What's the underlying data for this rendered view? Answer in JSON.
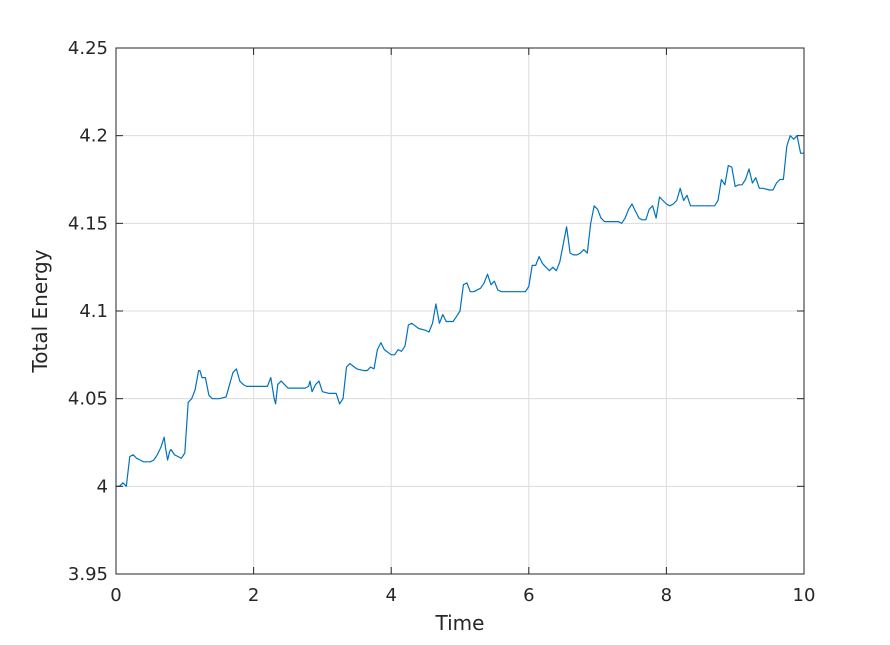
{
  "chart_data": {
    "type": "line",
    "title": "",
    "xlabel": "Time",
    "ylabel": "Total Energy",
    "xlim": [
      0,
      10
    ],
    "ylim": [
      3.95,
      4.25
    ],
    "xticks": [
      0,
      2,
      4,
      6,
      8,
      10
    ],
    "xtick_labels": [
      "0",
      "2",
      "4",
      "6",
      "8",
      "10"
    ],
    "yticks": [
      3.95,
      4.0,
      4.05,
      4.1,
      4.15,
      4.2,
      4.25
    ],
    "ytick_labels": [
      "3.95",
      "4",
      "4.05",
      "4.1",
      "4.15",
      "4.2",
      "4.25"
    ],
    "grid": true,
    "line_color": "#0072BD",
    "series": [
      {
        "x": [
          0.0,
          0.05,
          0.1,
          0.15,
          0.2,
          0.25,
          0.3,
          0.35,
          0.4,
          0.45,
          0.5,
          0.55,
          0.6,
          0.65,
          0.7,
          0.72,
          0.75,
          0.78,
          0.8,
          0.85,
          0.9,
          0.95,
          1.0,
          1.05,
          1.1,
          1.15,
          1.2,
          1.22,
          1.25,
          1.3,
          1.35,
          1.4,
          1.5,
          1.6,
          1.7,
          1.75,
          1.8,
          1.85,
          1.9,
          2.0,
          2.1,
          2.2,
          2.25,
          2.3,
          2.32,
          2.35,
          2.4,
          2.5,
          2.6,
          2.7,
          2.75,
          2.8,
          2.82,
          2.85,
          2.9,
          2.95,
          3.0,
          3.1,
          3.2,
          3.25,
          3.3,
          3.35,
          3.4,
          3.5,
          3.6,
          3.65,
          3.7,
          3.75,
          3.8,
          3.85,
          3.9,
          4.0,
          4.05,
          4.1,
          4.15,
          4.2,
          4.25,
          4.3,
          4.4,
          4.5,
          4.55,
          4.6,
          4.65,
          4.7,
          4.75,
          4.8,
          4.9,
          4.95,
          5.0,
          5.05,
          5.1,
          5.15,
          5.2,
          5.3,
          5.35,
          5.4,
          5.45,
          5.5,
          5.55,
          5.6,
          5.7,
          5.8,
          5.9,
          5.95,
          6.0,
          6.05,
          6.1,
          6.15,
          6.2,
          6.3,
          6.35,
          6.4,
          6.45,
          6.5,
          6.55,
          6.6,
          6.65,
          6.7,
          6.75,
          6.8,
          6.85,
          6.9,
          6.95,
          7.0,
          7.05,
          7.1,
          7.2,
          7.3,
          7.35,
          7.4,
          7.45,
          7.5,
          7.55,
          7.6,
          7.65,
          7.7,
          7.75,
          7.8,
          7.85,
          7.9,
          8.0,
          8.05,
          8.1,
          8.15,
          8.2,
          8.25,
          8.3,
          8.35,
          8.4,
          8.5,
          8.6,
          8.7,
          8.75,
          8.8,
          8.85,
          8.9,
          8.95,
          9.0,
          9.05,
          9.1,
          9.15,
          9.2,
          9.25,
          9.3,
          9.35,
          9.4,
          9.5,
          9.55,
          9.6,
          9.65,
          9.7,
          9.75,
          9.8,
          9.85,
          9.9,
          9.95,
          10.0
        ],
        "y": [
          4.0,
          4.0,
          4.002,
          4.0,
          4.017,
          4.018,
          4.016,
          4.015,
          4.014,
          4.014,
          4.014,
          4.015,
          4.018,
          4.022,
          4.028,
          4.022,
          4.015,
          4.02,
          4.021,
          4.018,
          4.017,
          4.016,
          4.019,
          4.048,
          4.05,
          4.055,
          4.066,
          4.066,
          4.062,
          4.062,
          4.052,
          4.05,
          4.05,
          4.051,
          4.065,
          4.067,
          4.06,
          4.058,
          4.057,
          4.057,
          4.057,
          4.057,
          4.062,
          4.05,
          4.047,
          4.058,
          4.06,
          4.056,
          4.056,
          4.056,
          4.056,
          4.057,
          4.06,
          4.054,
          4.058,
          4.06,
          4.054,
          4.053,
          4.053,
          4.047,
          4.05,
          4.068,
          4.07,
          4.067,
          4.066,
          4.066,
          4.068,
          4.067,
          4.078,
          4.082,
          4.078,
          4.075,
          4.075,
          4.078,
          4.077,
          4.08,
          4.092,
          4.093,
          4.09,
          4.089,
          4.088,
          4.093,
          4.104,
          4.093,
          4.098,
          4.094,
          4.094,
          4.097,
          4.1,
          4.115,
          4.116,
          4.111,
          4.111,
          4.113,
          4.116,
          4.121,
          4.115,
          4.117,
          4.112,
          4.111,
          4.111,
          4.111,
          4.111,
          4.111,
          4.114,
          4.126,
          4.126,
          4.131,
          4.127,
          4.123,
          4.125,
          4.123,
          4.128,
          4.138,
          4.148,
          4.133,
          4.132,
          4.132,
          4.133,
          4.135,
          4.133,
          4.15,
          4.16,
          4.158,
          4.153,
          4.151,
          4.151,
          4.151,
          4.15,
          4.153,
          4.158,
          4.161,
          4.157,
          4.153,
          4.152,
          4.152,
          4.158,
          4.16,
          4.153,
          4.165,
          4.161,
          4.16,
          4.161,
          4.163,
          4.17,
          4.163,
          4.166,
          4.16,
          4.16,
          4.16,
          4.16,
          4.16,
          4.163,
          4.175,
          4.172,
          4.183,
          4.182,
          4.171,
          4.172,
          4.172,
          4.175,
          4.181,
          4.173,
          4.176,
          4.17,
          4.17,
          4.169,
          4.169,
          4.173,
          4.175,
          4.175,
          4.194,
          4.2,
          4.198,
          4.2,
          4.19,
          4.19
        ]
      }
    ]
  }
}
